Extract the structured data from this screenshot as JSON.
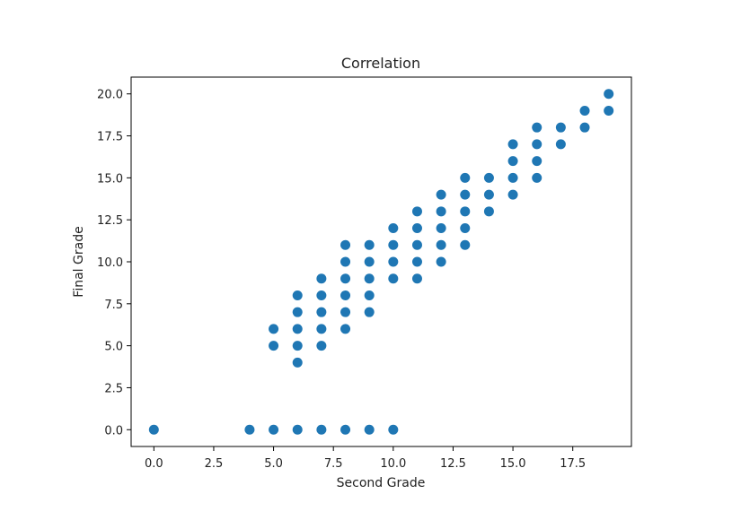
{
  "chart_data": {
    "type": "scatter",
    "title": "Correlation",
    "xlabel": "Second Grade",
    "ylabel": "Final Grade",
    "xlim": [
      -0.95,
      19.95
    ],
    "ylim": [
      -1.0,
      21.0
    ],
    "xticks": [
      0.0,
      2.5,
      5.0,
      7.5,
      10.0,
      12.5,
      15.0,
      17.5
    ],
    "xtick_labels": [
      "0.0",
      "2.5",
      "5.0",
      "7.5",
      "10.0",
      "12.5",
      "15.0",
      "17.5"
    ],
    "yticks": [
      0.0,
      2.5,
      5.0,
      7.5,
      10.0,
      12.5,
      15.0,
      17.5,
      20.0
    ],
    "ytick_labels": [
      "0.0",
      "2.5",
      "5.0",
      "7.5",
      "10.0",
      "12.5",
      "15.0",
      "17.5",
      "20.0"
    ],
    "grid": false,
    "marker_color": "#1f77b4",
    "points": [
      [
        0,
        0
      ],
      [
        4,
        0
      ],
      [
        5,
        0
      ],
      [
        6,
        0
      ],
      [
        7,
        0
      ],
      [
        8,
        0
      ],
      [
        9,
        0
      ],
      [
        10,
        0
      ],
      [
        5,
        5
      ],
      [
        5,
        6
      ],
      [
        6,
        4
      ],
      [
        6,
        5
      ],
      [
        6,
        6
      ],
      [
        6,
        7
      ],
      [
        6,
        8
      ],
      [
        7,
        5
      ],
      [
        7,
        6
      ],
      [
        7,
        7
      ],
      [
        7,
        8
      ],
      [
        7,
        9
      ],
      [
        8,
        6
      ],
      [
        8,
        7
      ],
      [
        8,
        8
      ],
      [
        8,
        9
      ],
      [
        8,
        10
      ],
      [
        8,
        11
      ],
      [
        9,
        7
      ],
      [
        9,
        8
      ],
      [
        9,
        9
      ],
      [
        9,
        10
      ],
      [
        9,
        11
      ],
      [
        10,
        9
      ],
      [
        10,
        10
      ],
      [
        10,
        11
      ],
      [
        10,
        12
      ],
      [
        11,
        9
      ],
      [
        11,
        10
      ],
      [
        11,
        11
      ],
      [
        11,
        12
      ],
      [
        11,
        13
      ],
      [
        12,
        10
      ],
      [
        12,
        11
      ],
      [
        12,
        12
      ],
      [
        12,
        13
      ],
      [
        12,
        14
      ],
      [
        13,
        11
      ],
      [
        13,
        12
      ],
      [
        13,
        13
      ],
      [
        13,
        14
      ],
      [
        13,
        15
      ],
      [
        14,
        13
      ],
      [
        14,
        14
      ],
      [
        14,
        15
      ],
      [
        15,
        14
      ],
      [
        15,
        15
      ],
      [
        15,
        16
      ],
      [
        15,
        17
      ],
      [
        16,
        15
      ],
      [
        16,
        16
      ],
      [
        16,
        17
      ],
      [
        16,
        18
      ],
      [
        17,
        17
      ],
      [
        17,
        18
      ],
      [
        18,
        18
      ],
      [
        18,
        19
      ],
      [
        19,
        19
      ],
      [
        19,
        20
      ]
    ]
  }
}
